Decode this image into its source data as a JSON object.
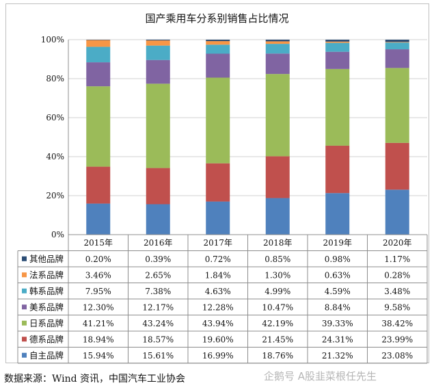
{
  "chart_data": {
    "type": "bar",
    "stacked": true,
    "title": "国产乘用车分系别销售占比情况",
    "categories": [
      "2015年",
      "2016年",
      "2017年",
      "2018年",
      "2019年",
      "2020年"
    ],
    "ylim": [
      0,
      100
    ],
    "yticks": [
      "0%",
      "20%",
      "40%",
      "60%",
      "80%",
      "100%"
    ],
    "grid": true,
    "legend_placement": "data-table-left",
    "series": [
      {
        "name": "自主品牌",
        "color": "#4f81bd",
        "values": [
          15.94,
          15.61,
          16.99,
          18.76,
          21.32,
          23.08
        ],
        "labels": [
          "15.94%",
          "15.61%",
          "16.99%",
          "18.76%",
          "21.32%",
          "23.08%"
        ]
      },
      {
        "name": "德系品牌",
        "color": "#c0504d",
        "values": [
          18.94,
          18.57,
          19.6,
          21.45,
          24.31,
          23.99
        ],
        "labels": [
          "18.94%",
          "18.57%",
          "19.60%",
          "21.45%",
          "24.31%",
          "23.99%"
        ]
      },
      {
        "name": "日系品牌",
        "color": "#9bbb59",
        "values": [
          41.21,
          43.24,
          43.94,
          42.19,
          39.33,
          38.42
        ],
        "labels": [
          "41.21%",
          "43.24%",
          "43.94%",
          "42.19%",
          "39.33%",
          "38.42%"
        ]
      },
      {
        "name": "美系品牌",
        "color": "#8064a2",
        "values": [
          12.3,
          12.17,
          12.28,
          10.47,
          8.84,
          9.58
        ],
        "labels": [
          "12.30%",
          "12.17%",
          "12.28%",
          "10.47%",
          "8.84%",
          "9.58%"
        ]
      },
      {
        "name": "韩系品牌",
        "color": "#4bacc6",
        "values": [
          7.95,
          7.38,
          4.63,
          4.99,
          4.59,
          3.48
        ],
        "labels": [
          "7.95%",
          "7.38%",
          "4.63%",
          "4.99%",
          "4.59%",
          "3.48%"
        ]
      },
      {
        "name": "法系品牌",
        "color": "#f79646",
        "values": [
          3.46,
          2.65,
          1.84,
          1.3,
          0.63,
          0.28
        ],
        "labels": [
          "3.46%",
          "2.65%",
          "1.84%",
          "1.30%",
          "0.63%",
          "0.28%"
        ]
      },
      {
        "name": "其他品牌",
        "color": "#2c4d75",
        "values": [
          0.2,
          0.39,
          0.72,
          0.85,
          0.98,
          1.17
        ],
        "labels": [
          "0.20%",
          "0.39%",
          "0.72%",
          "0.85%",
          "0.98%",
          "1.17%"
        ]
      }
    ]
  },
  "source": "数据来源：Wind 资讯，中国汽车工业协会",
  "watermark": "企鹅号 A股韭菜根任先生"
}
